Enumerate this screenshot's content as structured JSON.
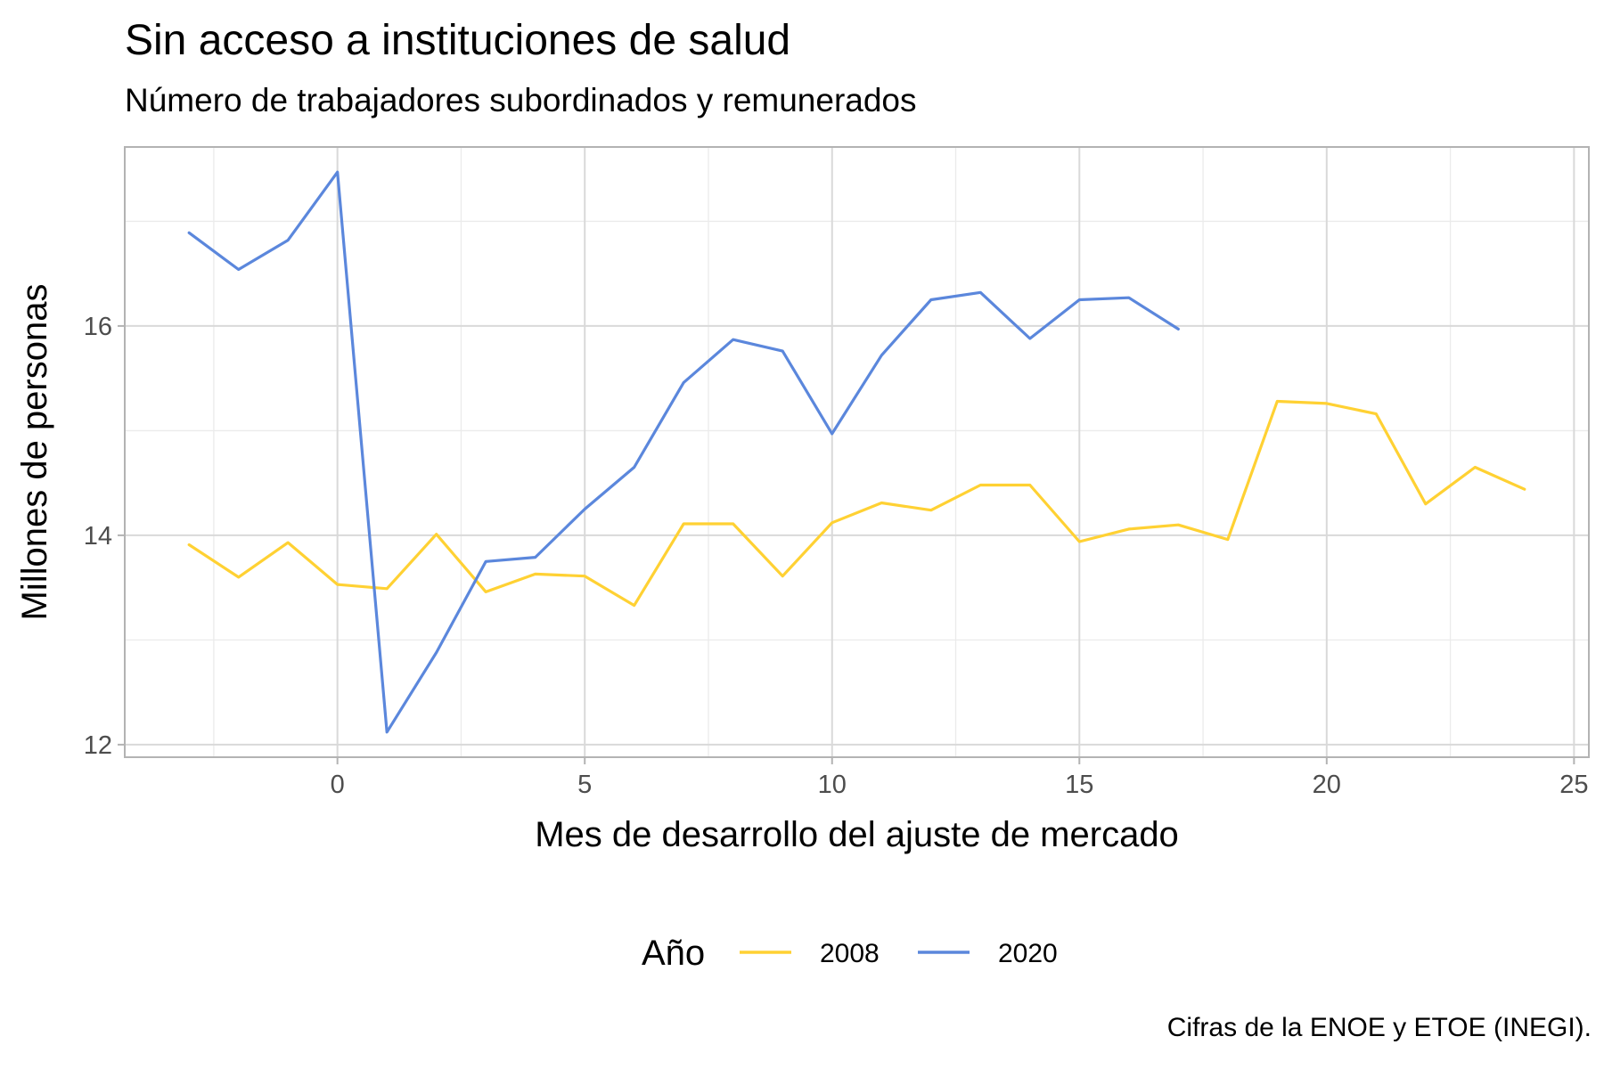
{
  "chart_data": {
    "type": "line",
    "title": "Sin acceso a instituciones de salud",
    "subtitle": "Número de trabajadores subordinados y remunerados",
    "xlabel": "Mes de desarrollo del ajuste de mercado",
    "ylabel": "Millones de personas",
    "caption": "Cifras de la ENOE y ETOE (INEGI).",
    "xlim": [
      -4.3,
      25.3
    ],
    "ylim": [
      11.88,
      17.71
    ],
    "x_ticks": [
      0,
      5,
      10,
      15,
      20,
      25
    ],
    "y_ticks": [
      12,
      14,
      16
    ],
    "grid": true,
    "legend": {
      "title": "Año",
      "position": "bottom"
    },
    "series": [
      {
        "name": "2008",
        "color": "#FFD133",
        "x": [
          -3,
          -2,
          -1,
          0,
          1,
          2,
          3,
          4,
          5,
          6,
          7,
          8,
          9,
          10,
          11,
          12,
          13,
          14,
          15,
          16,
          17,
          18,
          19,
          20,
          21,
          22,
          23,
          24
        ],
        "y": [
          13.91,
          13.6,
          13.93,
          13.53,
          13.49,
          14.01,
          13.46,
          13.63,
          13.61,
          13.33,
          14.11,
          14.11,
          13.61,
          14.12,
          14.31,
          14.24,
          14.48,
          14.48,
          13.94,
          14.06,
          14.1,
          13.96,
          15.28,
          15.26,
          15.16,
          14.3,
          14.65,
          14.44
        ]
      },
      {
        "name": "2020",
        "color": "#5B87DC",
        "x": [
          -3,
          -2,
          -1,
          0,
          1,
          2,
          3,
          4,
          5,
          6,
          7,
          8,
          9,
          10,
          11,
          12,
          13,
          14,
          15,
          16,
          17
        ],
        "y": [
          16.89,
          16.54,
          16.82,
          17.47,
          12.12,
          12.88,
          13.75,
          13.79,
          14.25,
          14.65,
          15.46,
          15.87,
          15.76,
          14.97,
          15.72,
          16.25,
          16.32,
          15.88,
          16.25,
          16.27,
          15.97
        ]
      }
    ]
  }
}
